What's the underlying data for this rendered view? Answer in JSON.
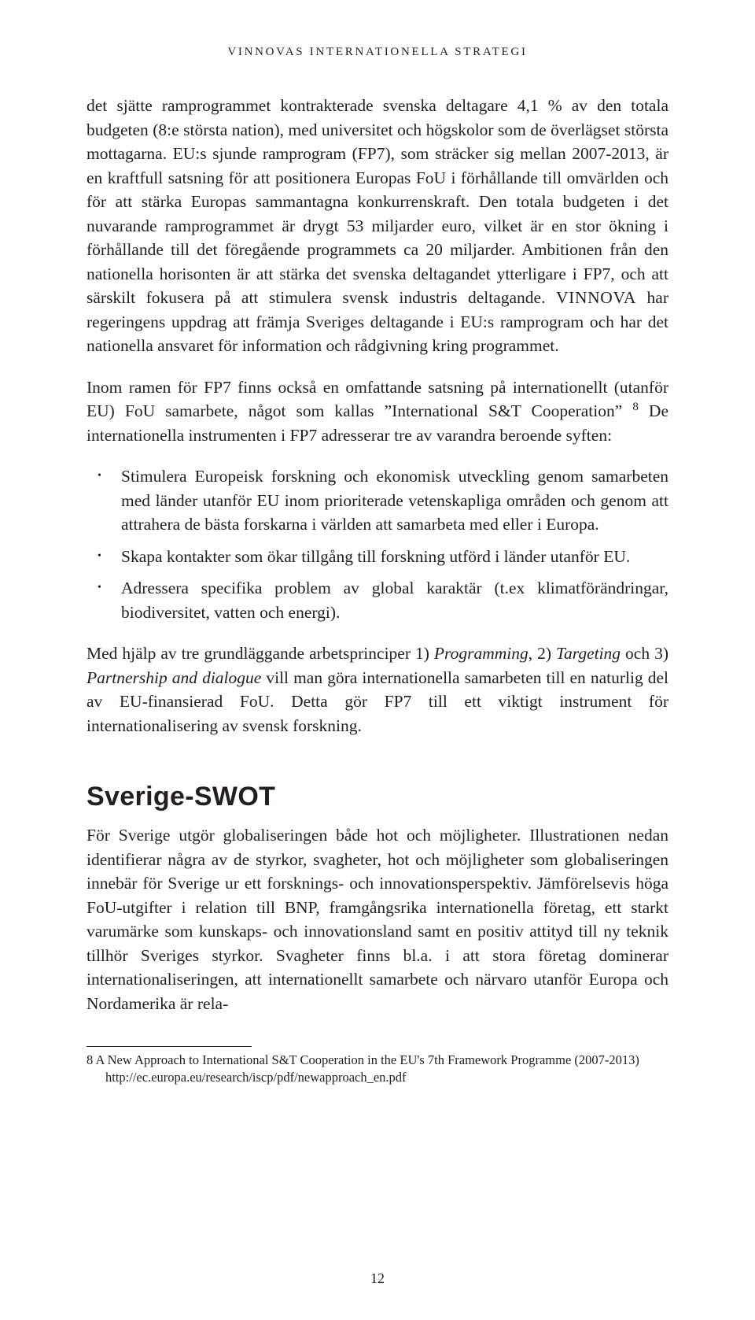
{
  "running_head": "VINNOVAS INTERNATIONELLA STRATEGI",
  "p1": "det sjätte ramprogrammet kontrakterade svenska deltagare 4,1 % av den totala budgeten (8:e största nation), med universitet och högskolor som de överlägset största mottagarna. EU:s sjunde ramprogram (FP7), som sträcker sig mellan 2007-2013, är en kraftfull satsning för att positionera Europas FoU i förhållande till omvärlden och för att stärka Europas sammantagna konkurrenskraft. Den totala budgeten i det nuvarande ramprogrammet är drygt 53 miljarder euro, vilket är en stor ökning i förhållande till det föregående programmets ca 20 miljarder. Ambitionen från den nationella horisonten är att stärka det svenska deltagandet ytterligare i FP7, och att särskilt fokusera på att stimulera svensk industris deltagande. ",
  "p1b": " har regeringens uppdrag att främja Sveriges deltagande i EU:s ramprogram och har det nationella ansvaret för information och rådgivning kring programmet.",
  "vinnova_label": "VINNOVA",
  "p2a": "Inom ramen för FP7 finns också en omfattande satsning på internationellt (utanför EU) FoU samarbete, något som kallas ”International S&T Cooperation” ",
  "fn_marker": "8",
  "p2b": " De internationella instrumenten i FP7 adresserar tre av varandra beroende syften:",
  "bullets": [
    "Stimulera Europeisk forskning och ekonomisk utveckling genom samarbeten med länder utanför EU inom prioriterade vetenskapliga områden och genom att attrahera de bästa forskarna i världen att samarbeta med eller i Europa.",
    "Skapa kontakter som ökar tillgång till forskning utförd i länder utanför EU.",
    "Adressera specifika problem av global karaktär (t.ex klimatförändringar, biodiversitet, vatten och energi)."
  ],
  "p3a": "Med hjälp av tre grundläggande arbetsprinciper 1) ",
  "p3_it1": "Programming",
  "p3b": ", 2) ",
  "p3_it2": "Targeting",
  "p3c": " och 3) ",
  "p3_it3": "Partnership and dialogue",
  "p3d": " vill man göra internationella samarbeten till en naturlig del av EU-finansierad FoU. Detta gör FP7 till ett viktigt instrument för internationalisering av svensk forskning.",
  "section_title": "Sverige-SWOT",
  "p4": "För Sverige utgör globaliseringen både hot och möjligheter. Illustrationen nedan identifierar några av de styrkor, svagheter, hot och möjligheter som globaliseringen innebär för Sverige ur ett forsknings- och innovationsperspektiv. Jämförelsevis höga FoU-utgifter i relation till BNP, framgångsrika internationella företag, ett starkt varumärke som kunskaps- och innovationsland samt en positiv attityd till ny teknik tillhör Sveriges styrkor. Svagheter finns bl.a. i att stora företag dominerar internationaliseringen, att internationellt samarbete och närvaro utanför Europa och Nordamerika är rela-",
  "footnote": "8   A New Approach to International S&T Cooperation in the EU's 7th Framework Programme (2007-2013) http://ec.europa.eu/research/iscp/pdf/newapproach_en.pdf",
  "page_number": "12"
}
